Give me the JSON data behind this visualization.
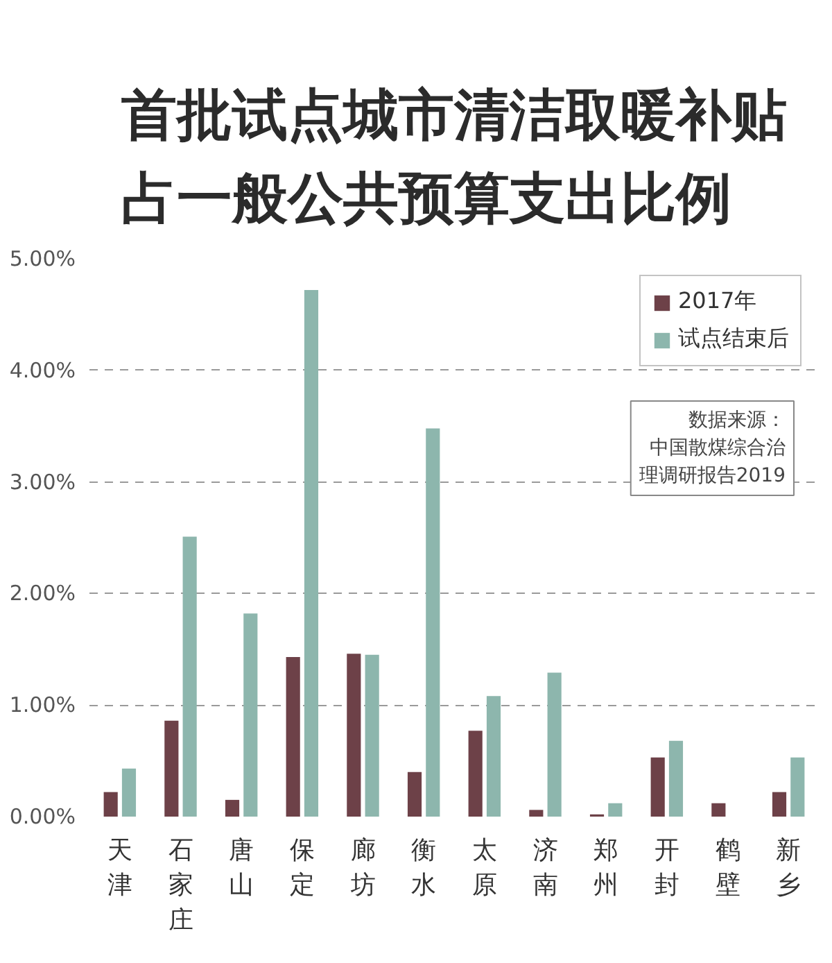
{
  "chart_data": {
    "type": "bar",
    "title": "首批试点城市清洁取暖补贴占一般公共预算支出比例",
    "categories": [
      "天津",
      "石家庄",
      "唐山",
      "保定",
      "廊坊",
      "衡水",
      "太原",
      "济南",
      "郑州",
      "开封",
      "鹤壁",
      "新乡"
    ],
    "series": [
      {
        "name": "2017年",
        "color": "#6d4148",
        "values": [
          0.22,
          0.86,
          0.15,
          1.43,
          1.46,
          0.4,
          0.77,
          0.06,
          0.02,
          0.53,
          0.12,
          0.22
        ]
      },
      {
        "name": "试点结束后",
        "color": "#8db6ad",
        "values": [
          0.43,
          2.51,
          1.82,
          4.72,
          1.45,
          3.48,
          1.08,
          1.29,
          0.12,
          0.68,
          0,
          0.53
        ]
      }
    ],
    "ylim": [
      0,
      5
    ],
    "yticks": [
      {
        "value": 0,
        "label": "0.00%"
      },
      {
        "value": 1,
        "label": "1.00%"
      },
      {
        "value": 2,
        "label": "2.00%"
      },
      {
        "value": 3,
        "label": "3.00%"
      },
      {
        "value": 4,
        "label": "4.00%"
      },
      {
        "value": 5,
        "label": "5.00%"
      }
    ],
    "grid": "y",
    "legend": "top right",
    "annotations": [
      "数据来源：",
      "中国散煤综合治理调研报告2019"
    ]
  }
}
